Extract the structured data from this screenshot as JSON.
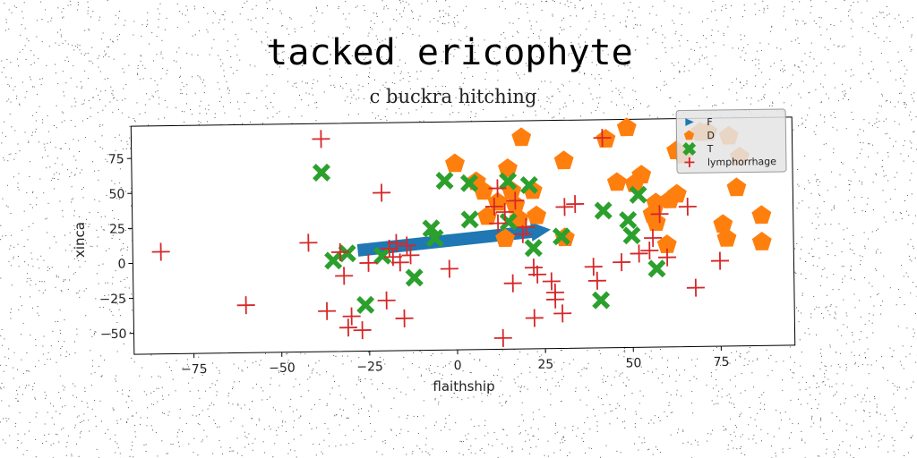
{
  "chart_data": {
    "type": "scatter",
    "title": "tacked ericophyte",
    "subtitle": "c buckra hitching",
    "xlabel": "flaithship",
    "ylabel": "xinca",
    "xlim": [
      -92,
      96
    ],
    "ylim": [
      -65,
      98
    ],
    "xticks": [
      -75,
      -50,
      -25,
      0,
      25,
      50,
      75
    ],
    "yticks": [
      -50,
      -25,
      0,
      25,
      50,
      75
    ],
    "legend_position": "top-right",
    "arrow": {
      "series": "F",
      "x_start": -28,
      "y_start": 7,
      "x_end": 27,
      "y_end": 20,
      "color": "#1f77b4"
    },
    "series": [
      {
        "name": "F",
        "marker": "triangle",
        "color": "#1f77b4",
        "points": []
      },
      {
        "name": "D",
        "marker": "pentagon",
        "color": "#ff7f0e",
        "points": [
          [
            0,
            68
          ],
          [
            6,
            55
          ],
          [
            8,
            48
          ],
          [
            9,
            30
          ],
          [
            12,
            40
          ],
          [
            14,
            14
          ],
          [
            15,
            64
          ],
          [
            16,
            48
          ],
          [
            17,
            38
          ],
          [
            18,
            28
          ],
          [
            19,
            86
          ],
          [
            22,
            48
          ],
          [
            23,
            30
          ],
          [
            31,
            69
          ],
          [
            31,
            14
          ],
          [
            43,
            84
          ],
          [
            46,
            53
          ],
          [
            49,
            92
          ],
          [
            51,
            52
          ],
          [
            53,
            58
          ],
          [
            56,
            30
          ],
          [
            57,
            38
          ],
          [
            57,
            24
          ],
          [
            60,
            8
          ],
          [
            61,
            40
          ],
          [
            63,
            75
          ],
          [
            63,
            44
          ],
          [
            65,
            72
          ],
          [
            70,
            88
          ],
          [
            72,
            88
          ],
          [
            78,
            85
          ],
          [
            80,
            48
          ],
          [
            81,
            70
          ],
          [
            76,
            22
          ],
          [
            77,
            12
          ],
          [
            87,
            28
          ],
          [
            87,
            9
          ]
        ]
      },
      {
        "name": "T",
        "marker": "x",
        "color": "#2ca02c",
        "points": [
          [
            -38,
            63
          ],
          [
            -35,
            0
          ],
          [
            -31,
            5
          ],
          [
            -26,
            -32
          ],
          [
            -21,
            3
          ],
          [
            -12,
            -13
          ],
          [
            -7,
            22
          ],
          [
            -6,
            15
          ],
          [
            -3,
            56
          ],
          [
            4,
            54
          ],
          [
            4,
            28
          ],
          [
            15,
            55
          ],
          [
            15,
            26
          ],
          [
            21,
            52
          ],
          [
            22,
            7
          ],
          [
            30,
            15
          ],
          [
            41,
            -31
          ],
          [
            42,
            33
          ],
          [
            49,
            26
          ],
          [
            50,
            15
          ],
          [
            52,
            44
          ],
          [
            57,
            -9
          ]
        ]
      },
      {
        "name": "lymphorrhage",
        "marker": "plus",
        "color": "#d62728",
        "points": [
          [
            -84,
            8
          ],
          [
            -60,
            -31
          ],
          [
            -42,
            13
          ],
          [
            -38,
            87
          ],
          [
            -37,
            -36
          ],
          [
            -33,
            6
          ],
          [
            -32,
            -11
          ],
          [
            -31,
            -48
          ],
          [
            -30,
            -40
          ],
          [
            -27,
            -50
          ],
          [
            -25,
            -2
          ],
          [
            -21,
            48
          ],
          [
            -20,
            -29
          ],
          [
            -19,
            8
          ],
          [
            -18,
            2
          ],
          [
            -17,
            12
          ],
          [
            -16,
            -2
          ],
          [
            -15,
            -42
          ],
          [
            -14,
            10
          ],
          [
            -13,
            3
          ],
          [
            -2,
            -7
          ],
          [
            11,
            37
          ],
          [
            12,
            50
          ],
          [
            12,
            25
          ],
          [
            13,
            -57
          ],
          [
            14,
            33
          ],
          [
            16,
            -18
          ],
          [
            17,
            41
          ],
          [
            19,
            17
          ],
          [
            20,
            22
          ],
          [
            22,
            -43
          ],
          [
            22,
            -7
          ],
          [
            23,
            -12
          ],
          [
            27,
            -17
          ],
          [
            28,
            -25
          ],
          [
            28,
            -30
          ],
          [
            30,
            -40
          ],
          [
            31,
            36
          ],
          [
            34,
            38
          ],
          [
            39,
            -7
          ],
          [
            40,
            -17
          ],
          [
            42,
            85
          ],
          [
            47,
            -4
          ],
          [
            52,
            2
          ],
          [
            55,
            4
          ],
          [
            56,
            13
          ],
          [
            58,
            30
          ],
          [
            60,
            -1
          ],
          [
            66,
            35
          ],
          [
            68,
            -23
          ],
          [
            75,
            -4
          ]
        ]
      }
    ]
  }
}
